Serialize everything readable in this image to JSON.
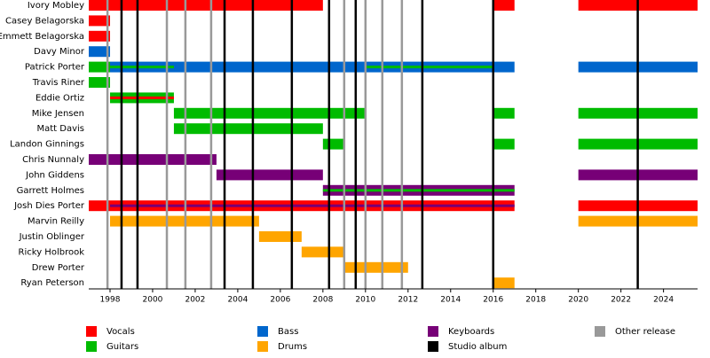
{
  "chart_data": {
    "type": "timeline",
    "xlim": [
      1997,
      2025.6
    ],
    "xticks": [
      1998,
      2000,
      2002,
      2004,
      2006,
      2008,
      2010,
      2012,
      2014,
      2016,
      2018,
      2020,
      2022,
      2024
    ],
    "legend": [
      {
        "name": "Vocals",
        "color": "#ff0000"
      },
      {
        "name": "Guitars",
        "color": "#00bb00"
      },
      {
        "name": "Bass",
        "color": "#0066cc"
      },
      {
        "name": "Drums",
        "color": "#ffa500"
      },
      {
        "name": "Keyboards",
        "color": "#770077"
      },
      {
        "name": "Studio album",
        "color": "#000000"
      },
      {
        "name": "Other release",
        "color": "#999999"
      }
    ],
    "members": [
      {
        "name": "Ivory Mobley",
        "periods": [
          {
            "start": 1997,
            "end": 2008,
            "role": "Vocals"
          },
          {
            "start": 2016,
            "end": 2017,
            "role": "Vocals"
          },
          {
            "start": 2020,
            "end": 2025.6,
            "role": "Vocals"
          }
        ]
      },
      {
        "name": "Casey Belagorska",
        "periods": [
          {
            "start": 1997,
            "end": 1998,
            "role": "Vocals"
          }
        ]
      },
      {
        "name": "Emmett Belagorska",
        "periods": [
          {
            "start": 1997,
            "end": 1998,
            "role": "Vocals"
          }
        ]
      },
      {
        "name": "Davy Minor",
        "periods": [
          {
            "start": 1997,
            "end": 1998,
            "role": "Bass"
          }
        ]
      },
      {
        "name": "Patrick Porter",
        "periods": [
          {
            "start": 1997,
            "end": 1998,
            "role": "Guitars"
          },
          {
            "start": 1998,
            "end": 2017,
            "role": "Bass"
          },
          {
            "start": 2020,
            "end": 2025.6,
            "role": "Bass"
          }
        ],
        "secondary": [
          {
            "start": 1998,
            "end": 2001,
            "role": "Guitars"
          },
          {
            "start": 2010,
            "end": 2016,
            "role": "Guitars"
          }
        ]
      },
      {
        "name": "Travis Riner",
        "periods": [
          {
            "start": 1997,
            "end": 1998,
            "role": "Guitars"
          }
        ]
      },
      {
        "name": "Eddie Ortiz",
        "periods": [
          {
            "start": 1998,
            "end": 2001,
            "role": "Guitars"
          }
        ],
        "secondary": [
          {
            "start": 1998,
            "end": 2001,
            "role": "Vocals"
          }
        ]
      },
      {
        "name": "Mike Jensen",
        "periods": [
          {
            "start": 2001,
            "end": 2010,
            "role": "Guitars"
          },
          {
            "start": 2016,
            "end": 2017,
            "role": "Guitars"
          },
          {
            "start": 2020,
            "end": 2025.6,
            "role": "Guitars"
          }
        ]
      },
      {
        "name": "Matt Davis",
        "periods": [
          {
            "start": 2001,
            "end": 2008,
            "role": "Guitars"
          }
        ]
      },
      {
        "name": "Landon Ginnings",
        "periods": [
          {
            "start": 2008,
            "end": 2009,
            "role": "Guitars"
          },
          {
            "start": 2016,
            "end": 2017,
            "role": "Guitars"
          },
          {
            "start": 2020,
            "end": 2025.6,
            "role": "Guitars"
          }
        ]
      },
      {
        "name": "Chris Nunnaly",
        "periods": [
          {
            "start": 1997,
            "end": 2003,
            "role": "Keyboards"
          }
        ]
      },
      {
        "name": "John Giddens",
        "periods": [
          {
            "start": 2003,
            "end": 2008,
            "role": "Keyboards"
          },
          {
            "start": 2020,
            "end": 2025.6,
            "role": "Keyboards"
          }
        ]
      },
      {
        "name": "Garrett Holmes",
        "periods": [
          {
            "start": 2008,
            "end": 2017,
            "role": "Keyboards"
          }
        ],
        "secondary": [
          {
            "start": 2008,
            "end": 2017,
            "role": "Guitars"
          }
        ]
      },
      {
        "name": "Josh Dies Porter",
        "periods": [
          {
            "start": 1997,
            "end": 2017,
            "role": "Vocals"
          },
          {
            "start": 2020,
            "end": 2025.6,
            "role": "Vocals"
          }
        ],
        "secondary": [
          {
            "start": 1998,
            "end": 2017,
            "role": "Keyboards"
          }
        ]
      },
      {
        "name": "Marvin Reilly",
        "periods": [
          {
            "start": 1998,
            "end": 2005,
            "role": "Drums"
          },
          {
            "start": 2020,
            "end": 2025.6,
            "role": "Drums"
          }
        ]
      },
      {
        "name": "Justin Oblinger",
        "periods": [
          {
            "start": 2005,
            "end": 2007,
            "role": "Drums"
          }
        ]
      },
      {
        "name": "Ricky Holbrook",
        "periods": [
          {
            "start": 2007,
            "end": 2009,
            "role": "Drums"
          }
        ]
      },
      {
        "name": "Drew Porter",
        "periods": [
          {
            "start": 2009,
            "end": 2012,
            "role": "Drums"
          }
        ]
      },
      {
        "name": "Ryan Peterson",
        "periods": [
          {
            "start": 2016,
            "end": 2017,
            "role": "Drums"
          }
        ]
      }
    ],
    "studio_albums": [
      1998.54,
      1999.29,
      2003.38,
      2004.71,
      2006.54,
      2008.29,
      2009.54,
      2012.67,
      2016.0,
      2022.79
    ],
    "other_releases": [
      1997.88,
      2000.67,
      2001.54,
      2002.75,
      2009.0,
      2010.0,
      2010.79,
      2011.71
    ]
  }
}
